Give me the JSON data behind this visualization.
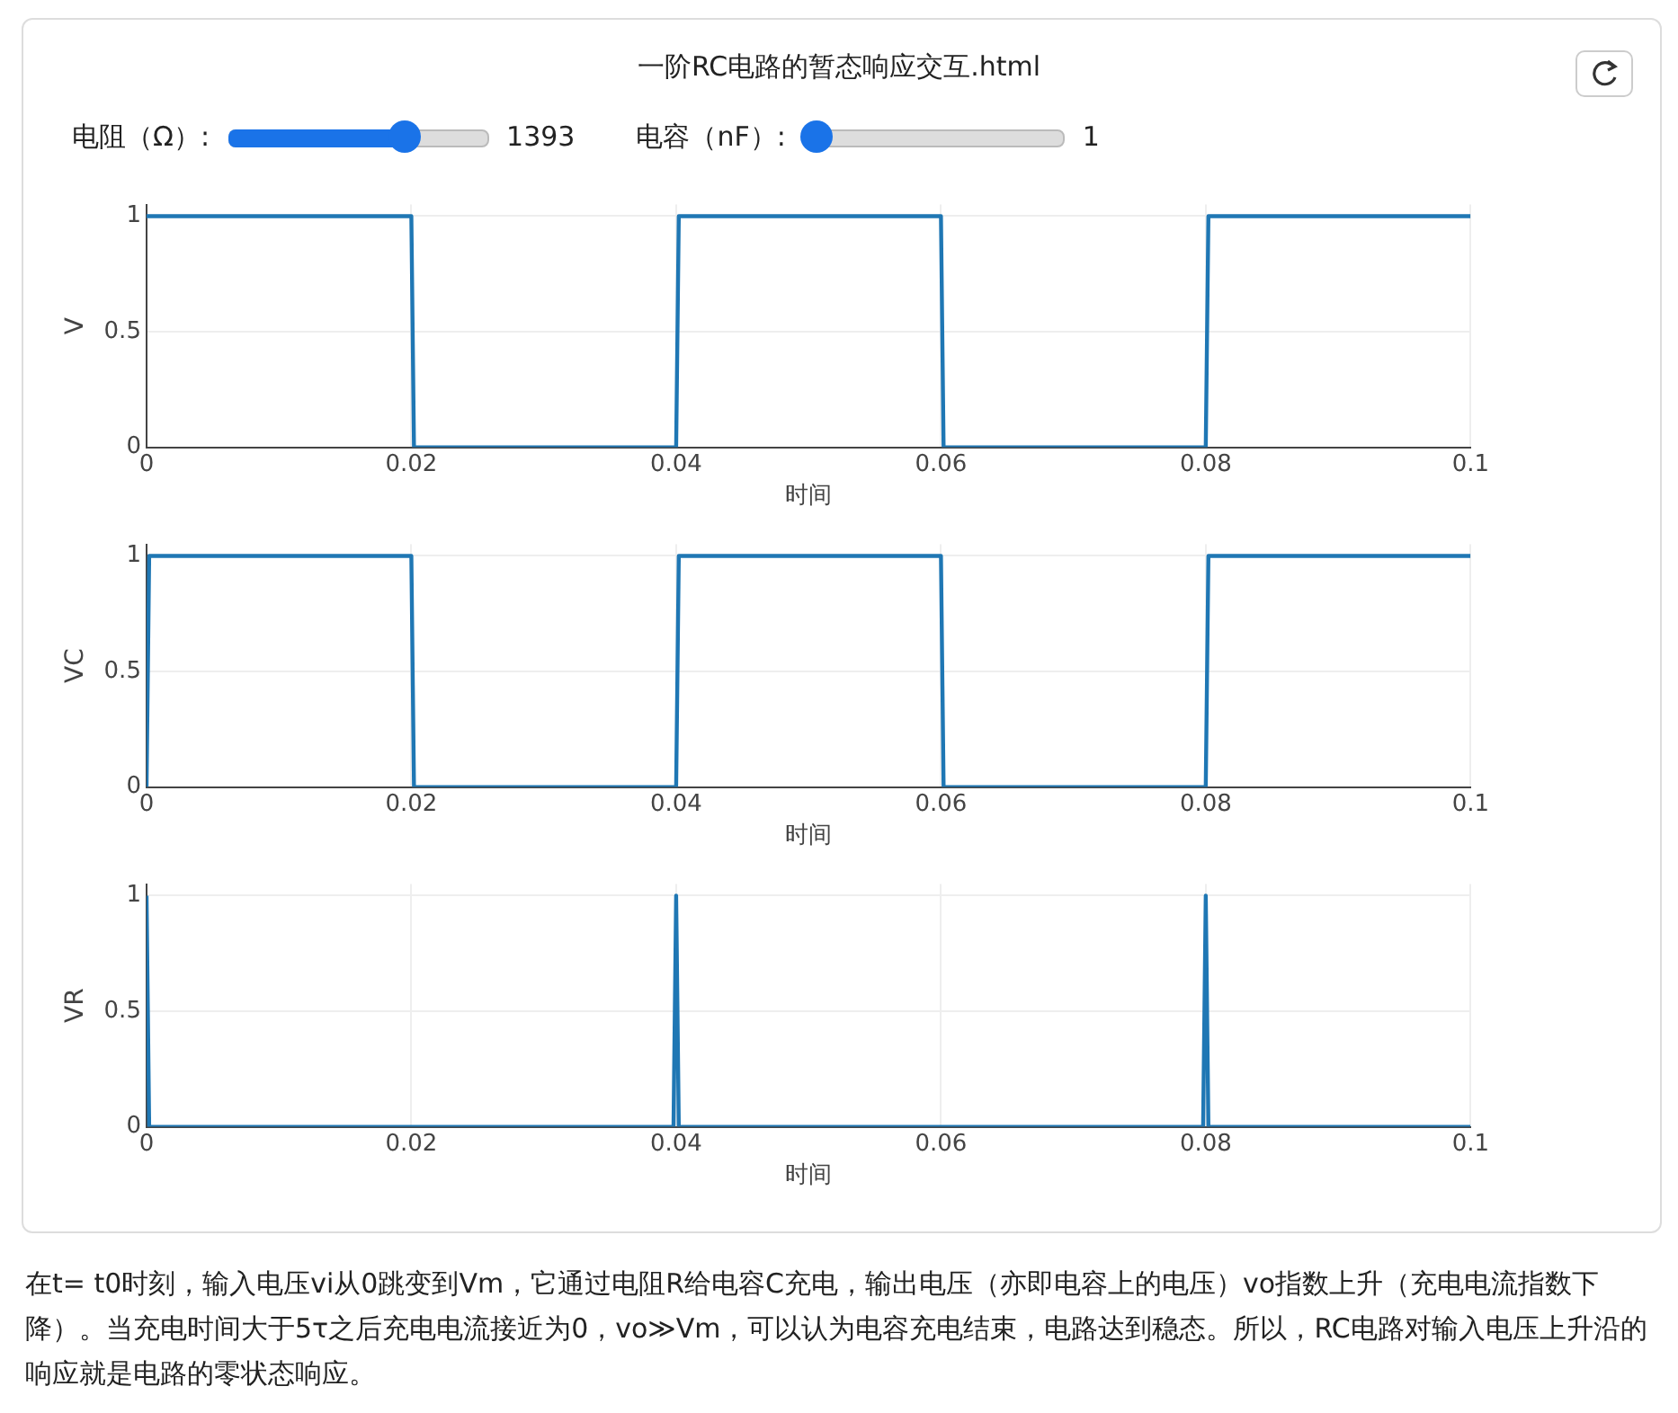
{
  "chart_data": [
    {
      "type": "line",
      "title": "一阶RC电路的暂态响应交互.html",
      "annotations": [
        "电阻（Ω）:",
        "1393",
        "电容（nF）:",
        "1"
      ],
      "xlabel": "时间",
      "ylabel": "V",
      "xlim": [
        0,
        0.1
      ],
      "xticks": [
        0,
        0.02,
        0.04,
        0.06,
        0.08,
        0.1
      ],
      "ylim": [
        0,
        1.05
      ],
      "yticks": [
        0,
        0.5,
        1
      ],
      "grid": true,
      "legend": false,
      "series": [
        {
          "color": "#1f77b4",
          "x": [
            0,
            0.02,
            0.0202,
            0.04,
            0.0402,
            0.06,
            0.0602,
            0.08,
            0.0802,
            0.1
          ],
          "values": [
            1,
            1,
            0,
            0,
            1,
            1,
            0,
            0,
            1,
            1
          ]
        }
      ]
    },
    {
      "type": "line",
      "xlabel": "时间",
      "ylabel": "VC",
      "xlim": [
        0,
        0.1
      ],
      "xticks": [
        0,
        0.02,
        0.04,
        0.06,
        0.08,
        0.1
      ],
      "ylim": [
        0,
        1.05
      ],
      "yticks": [
        0,
        0.5,
        1
      ],
      "grid": true,
      "legend": false,
      "series": [
        {
          "color": "#1f77b4",
          "x": [
            0,
            0.0002,
            0.02,
            0.0202,
            0.04,
            0.0402,
            0.06,
            0.0602,
            0.08,
            0.0802,
            0.1
          ],
          "values": [
            0,
            1,
            1,
            0,
            0,
            1,
            1,
            0,
            0,
            1,
            1
          ]
        }
      ]
    },
    {
      "type": "line",
      "xlabel": "时间",
      "ylabel": "VR",
      "xlim": [
        0,
        0.1
      ],
      "xticks": [
        0,
        0.02,
        0.04,
        0.06,
        0.08,
        0.1
      ],
      "ylim": [
        0,
        1.05
      ],
      "yticks": [
        0,
        0.5,
        1
      ],
      "grid": true,
      "legend": false,
      "annotations": [
        "在t= t0时刻，输入电压vi从0跳变到Vm，它通过电阻R给电容C充电，输出电压（亦即电容上的电压）vo指数上升（充电电流指数下降）。当充电时间大于5τ之后充电电流接近为0，vo≫Vm，可以认为电容充电结束，电路达到稳态。所以，RC电路对输入电压上升沿的响应就是电路的零状态响应。"
      ],
      "series": [
        {
          "color": "#1f77b4",
          "x": [
            0,
            0.0002,
            0.0398,
            0.04,
            0.0402,
            0.0798,
            0.08,
            0.0802,
            0.1
          ],
          "values": [
            1,
            0,
            0,
            1,
            0,
            0,
            1,
            0,
            0
          ]
        }
      ]
    }
  ]
}
